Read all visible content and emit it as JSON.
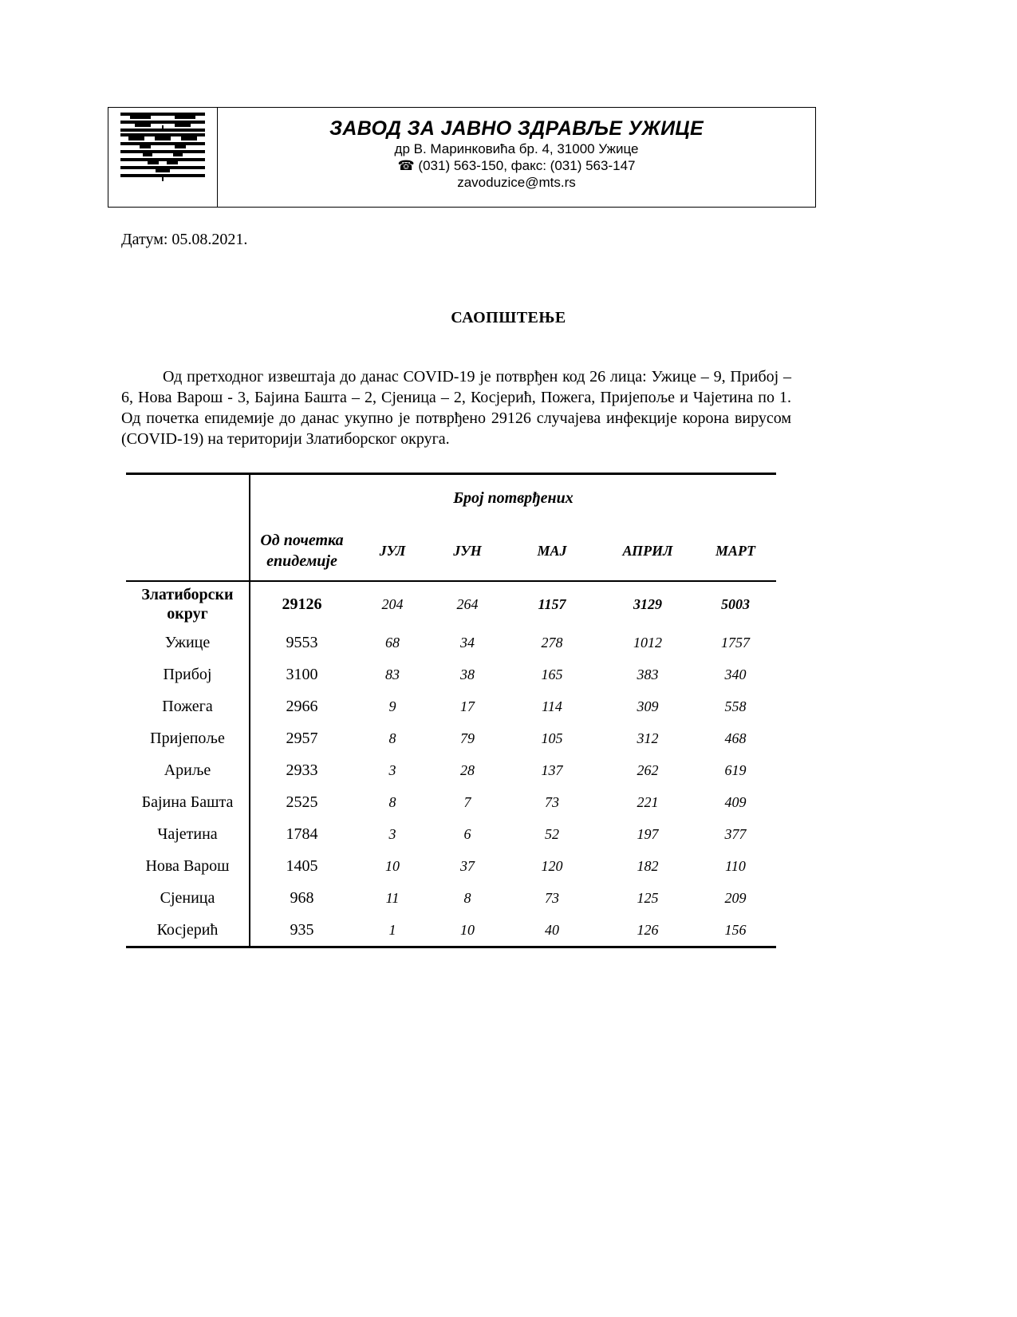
{
  "letterhead": {
    "org_name": "ЗАВОД ЗА ЈАВНО ЗДРАВЉЕ УЖИЦЕ",
    "address": "др В. Маринковића бр. 4, 31000 Ужице",
    "phone_icon": "telephone-icon",
    "phone_icon_glyph": "☎",
    "phone": "(031) 563-150, факс: (031) 563-147",
    "email": "zavoduzice@mts.rs"
  },
  "date": "Датум: 05.08.2021.",
  "heading": "САОПШТЕЊЕ",
  "paragraph": "Од претходног извештаја до данас COVID-19 је потврђен код 26 лица: Ужице – 9, Прибој – 6, Нова Варош - 3, Бајина Башта – 2, Сјеница – 2, Косјерић, Пожега, Пријепоље  и Чајетина по 1. Од почетка епидемије до данас укупно је потврђено 29126 случајева инфекције корона вирусом (COVID-19) на територији Златиборског округа.",
  "table": {
    "group_header": "Број потврђених",
    "columns": [
      "Од почетка епидемије",
      "ЈУЛ",
      "ЈУН",
      "МАЈ",
      "АПРИЛ",
      "МАРТ"
    ],
    "total": {
      "name": "Златиборски округ",
      "values": [
        "29126",
        "204",
        "264",
        "1157",
        "3129",
        "5003"
      ]
    },
    "rows": [
      {
        "name": "Ужице",
        "values": [
          "9553",
          "68",
          "34",
          "278",
          "1012",
          "1757"
        ]
      },
      {
        "name": "Прибој",
        "values": [
          "3100",
          "83",
          "38",
          "165",
          "383",
          "340"
        ]
      },
      {
        "name": "Пожега",
        "values": [
          "2966",
          "9",
          "17",
          "114",
          "309",
          "558"
        ]
      },
      {
        "name": "Пријепоље",
        "values": [
          "2957",
          "8",
          "79",
          "105",
          "312",
          "468"
        ]
      },
      {
        "name": "Ариље",
        "values": [
          "2933",
          "3",
          "28",
          "137",
          "262",
          "619"
        ]
      },
      {
        "name": "Бајина Башта",
        "values": [
          "2525",
          "8",
          "7",
          "73",
          "221",
          "409"
        ]
      },
      {
        "name": "Чајетина",
        "values": [
          "1784",
          "3",
          "6",
          "52",
          "197",
          "377"
        ]
      },
      {
        "name": "Нова Варош",
        "values": [
          "1405",
          "10",
          "37",
          "120",
          "182",
          "110"
        ]
      },
      {
        "name": "Сјеница",
        "values": [
          "968",
          "11",
          "8",
          "73",
          "125",
          "209"
        ]
      },
      {
        "name": "Косјерић",
        "values": [
          "935",
          "1",
          "10",
          "40",
          "126",
          "156"
        ]
      }
    ]
  }
}
